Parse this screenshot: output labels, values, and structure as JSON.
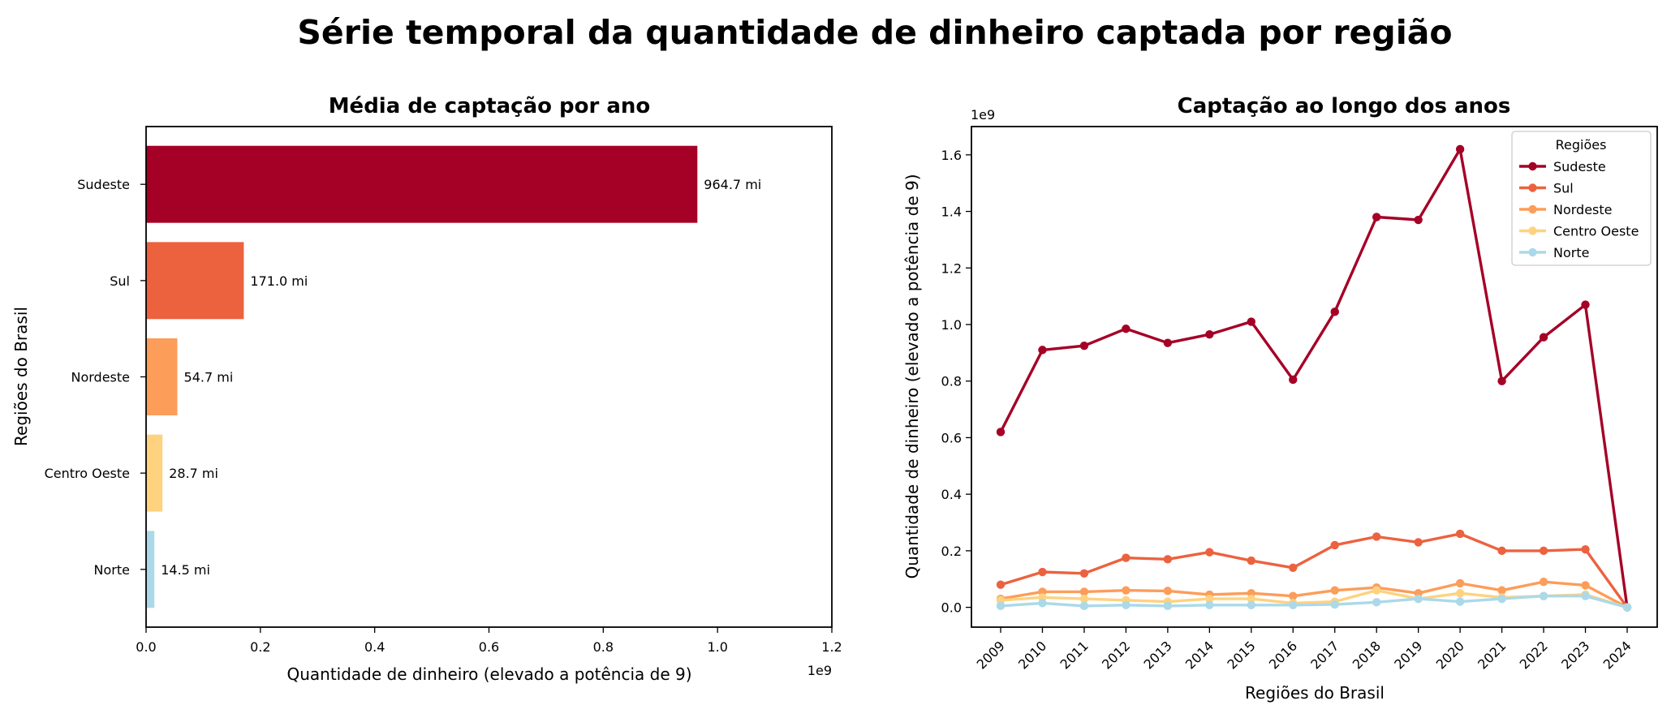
{
  "title": "Série temporal da quantidade de dinheiro captada por região",
  "colors": {
    "Sudeste": "#a50026",
    "Sul": "#ec623f",
    "Nordeste": "#fc9d59",
    "Centro Oeste": "#fed27f",
    "Norte": "#abd9e9"
  },
  "chart_data": [
    {
      "type": "bar",
      "orientation": "horizontal",
      "title": "Média de captação por ano",
      "xlabel": "Quantidade de dinheiro (elevado a potência de 9)",
      "ylabel": "Regiões do Brasil",
      "offset_label": "1e9",
      "xlim": [
        0,
        1.2
      ],
      "xticks": [
        "0.0",
        "0.2",
        "0.4",
        "0.6",
        "0.8",
        "1.0",
        "1.2"
      ],
      "categories": [
        "Sudeste",
        "Sul",
        "Nordeste",
        "Centro Oeste",
        "Norte"
      ],
      "values": [
        0.9647,
        0.171,
        0.0547,
        0.0287,
        0.0145
      ],
      "data_labels": [
        "964.7 mi",
        "171.0 mi",
        "54.7 mi",
        "28.7 mi",
        "14.5 mi"
      ]
    },
    {
      "type": "line",
      "title": "Captação ao longo dos anos",
      "xlabel": "Regiões do Brasil",
      "ylabel": "Quantidade de dinheiro (elevado a potência de 9)",
      "offset_label": "1e9",
      "ylim": [
        -0.07,
        1.7
      ],
      "yticks": [
        "0.0",
        "0.2",
        "0.4",
        "0.6",
        "0.8",
        "1.0",
        "1.2",
        "1.4",
        "1.6"
      ],
      "x": [
        "2009",
        "2010",
        "2011",
        "2012",
        "2013",
        "2014",
        "2015",
        "2016",
        "2017",
        "2018",
        "2019",
        "2020",
        "2021",
        "2022",
        "2023",
        "2024"
      ],
      "legend": {
        "title": "Regiões",
        "placement": "top-right"
      },
      "series": [
        {
          "name": "Sudeste",
          "values": [
            0.62,
            0.91,
            0.925,
            0.985,
            0.935,
            0.965,
            1.01,
            0.805,
            1.045,
            1.38,
            1.37,
            1.62,
            0.8,
            0.955,
            1.07,
            0.0
          ]
        },
        {
          "name": "Sul",
          "values": [
            0.08,
            0.125,
            0.12,
            0.175,
            0.17,
            0.195,
            0.165,
            0.14,
            0.22,
            0.25,
            0.23,
            0.26,
            0.2,
            0.2,
            0.205,
            0.0
          ]
        },
        {
          "name": "Nordeste",
          "values": [
            0.03,
            0.055,
            0.055,
            0.06,
            0.058,
            0.045,
            0.05,
            0.04,
            0.06,
            0.07,
            0.05,
            0.085,
            0.06,
            0.09,
            0.078,
            0.0
          ]
        },
        {
          "name": "Centro Oeste",
          "values": [
            0.025,
            0.035,
            0.03,
            0.025,
            0.02,
            0.03,
            0.03,
            0.015,
            0.02,
            0.06,
            0.03,
            0.05,
            0.035,
            0.04,
            0.045,
            0.0
          ]
        },
        {
          "name": "Norte",
          "values": [
            0.005,
            0.015,
            0.005,
            0.008,
            0.005,
            0.008,
            0.008,
            0.008,
            0.01,
            0.018,
            0.03,
            0.02,
            0.03,
            0.04,
            0.04,
            0.0
          ]
        }
      ]
    }
  ]
}
